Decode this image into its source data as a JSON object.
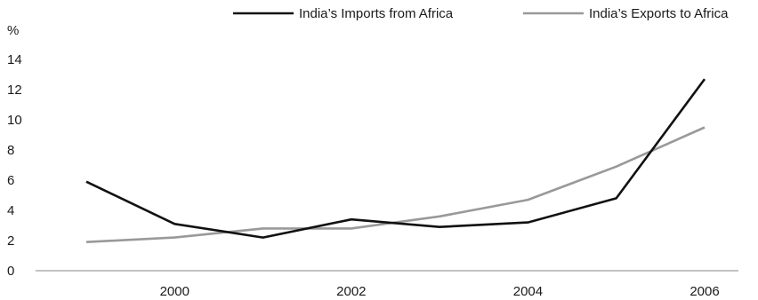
{
  "chart_data": {
    "type": "line",
    "title": "",
    "xlabel": "",
    "ylabel": "%",
    "x": [
      1999,
      2000,
      2001,
      2002,
      2003,
      2004,
      2005,
      2006
    ],
    "x_tick_labels": [
      "2000",
      "2002",
      "2004",
      "2006"
    ],
    "y_tick_labels": [
      "0",
      "2",
      "4",
      "6",
      "8",
      "10",
      "12",
      "14"
    ],
    "ylim": [
      0,
      14
    ],
    "grid": false,
    "legend_position": "top-right",
    "series": [
      {
        "name": "India’s Imports from Africa",
        "color": "#111111",
        "values": [
          5.9,
          3.1,
          2.2,
          3.4,
          2.9,
          3.2,
          4.8,
          12.7
        ]
      },
      {
        "name": "India’s Exports to Africa",
        "color": "#999999",
        "values": [
          1.9,
          2.2,
          2.8,
          2.8,
          3.6,
          4.7,
          6.9,
          9.5
        ]
      }
    ]
  }
}
